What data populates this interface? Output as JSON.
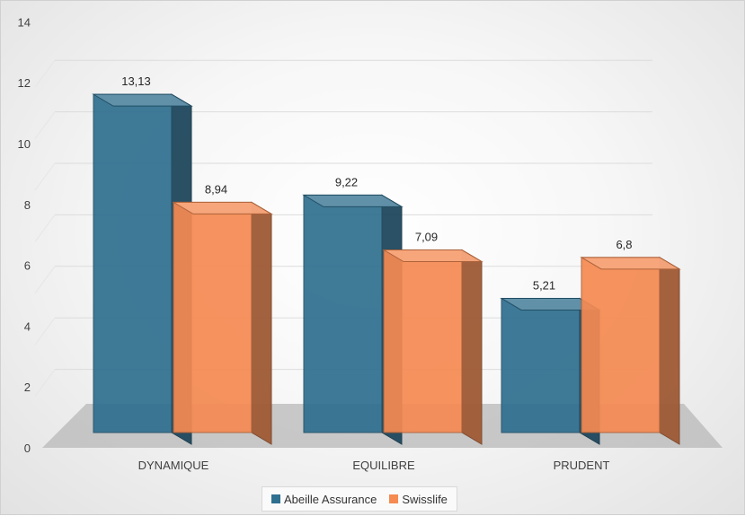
{
  "chart_data": {
    "type": "bar",
    "categories": [
      "DYNAMIQUE",
      "EQUILIBRE",
      "PRUDENT"
    ],
    "series": [
      {
        "name": "Abeille Assurance",
        "values": [
          13.13,
          9.22,
          5.21
        ],
        "labels": [
          "13,13",
          "9,22",
          "5,21"
        ],
        "color": "#2f6f8f"
      },
      {
        "name": "Swisslife",
        "values": [
          8.94,
          7.09,
          6.8
        ],
        "labels": [
          "8,94",
          "7,09",
          "6,8"
        ],
        "color": "#f58a52"
      }
    ],
    "yticks": [
      "0",
      "2",
      "4",
      "6",
      "8",
      "10",
      "12",
      "14"
    ],
    "ylim": [
      0,
      14
    ],
    "grid": true,
    "legend_position": "bottom",
    "style": "3d-clustered-column"
  }
}
